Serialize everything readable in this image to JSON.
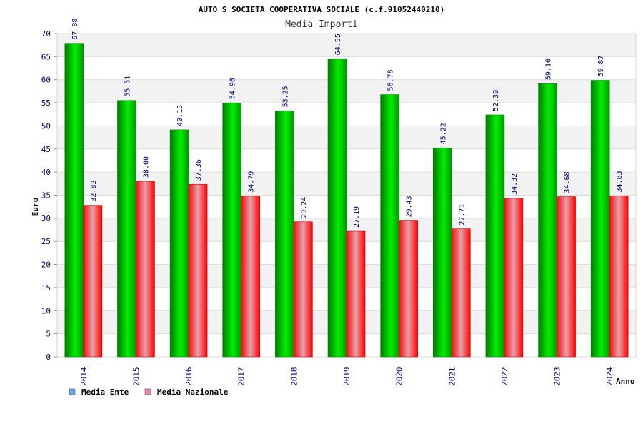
{
  "chart_data": {
    "type": "bar",
    "title": "AUTO S SOCIETA COOPERATIVA SOCIALE (c.f.91052440210)",
    "subtitle": "Media Importi",
    "xlabel": "Anno",
    "ylabel": "Euro",
    "ylim": [
      0,
      70
    ],
    "ytick_step": 5,
    "categories": [
      "2014",
      "2015",
      "2016",
      "2017",
      "2018",
      "2019",
      "2020",
      "2021",
      "2022",
      "2023",
      "2024"
    ],
    "series": [
      {
        "name": "Media Ente",
        "color": "#00cc00",
        "legend_color": "#66aaee",
        "values": [
          67.88,
          55.51,
          49.15,
          54.98,
          53.25,
          64.55,
          56.78,
          45.22,
          52.39,
          59.16,
          59.87
        ],
        "labels": [
          "67.88",
          "55.51",
          "49.15",
          "54.98",
          "53.25",
          "64.55",
          "56.78",
          "45.22",
          "52.39",
          "59.16",
          "59.87"
        ]
      },
      {
        "name": "Media Nazionale",
        "color": "#ee0000",
        "legend_color": "#ee88bb",
        "values": [
          32.82,
          38.0,
          37.36,
          34.79,
          29.24,
          27.19,
          29.43,
          27.71,
          34.32,
          34.68,
          34.83
        ],
        "labels": [
          "32.82",
          "38.00",
          "37.36",
          "34.79",
          "29.24",
          "27.19",
          "29.43",
          "27.71",
          "34.32",
          "34.68",
          "34.83"
        ]
      }
    ],
    "grid": true,
    "legend_position": "bottom-left"
  }
}
